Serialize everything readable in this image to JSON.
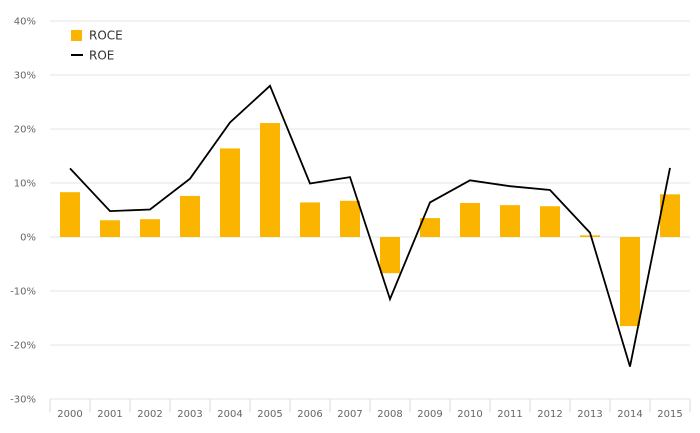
{
  "chart_data": {
    "type": "bar",
    "categories": [
      "2000",
      "2001",
      "2002",
      "2003",
      "2004",
      "2005",
      "2006",
      "2007",
      "2008",
      "2009",
      "2010",
      "2011",
      "2012",
      "2013",
      "2014",
      "2015"
    ],
    "series": [
      {
        "name": "ROCE",
        "type": "bar",
        "color": "#FBB400",
        "values": [
          8.3,
          3.1,
          3.3,
          7.6,
          16.4,
          21.1,
          6.4,
          6.7,
          -6.7,
          3.5,
          6.3,
          5.9,
          5.7,
          0.3,
          -16.5,
          7.9
        ]
      },
      {
        "name": "ROE",
        "type": "line",
        "color": "#000000",
        "values": [
          12.7,
          4.8,
          5.1,
          10.8,
          21.2,
          28.0,
          9.9,
          11.1,
          -11.5,
          6.4,
          10.5,
          9.4,
          8.7,
          0.8,
          -24.0,
          12.8
        ]
      }
    ],
    "yticks": [
      "40%",
      "30%",
      "20%",
      "10%",
      "0%",
      "-10%",
      "-20%",
      "-30%"
    ],
    "ylim": [
      -30,
      40
    ],
    "y_unit": "%",
    "grid": true,
    "legend": {
      "position": "top-left",
      "items": [
        {
          "label": "ROCE",
          "color": "#FBB400",
          "marker": "square"
        },
        {
          "label": "ROE",
          "color": "#000000",
          "marker": "line"
        }
      ]
    }
  }
}
